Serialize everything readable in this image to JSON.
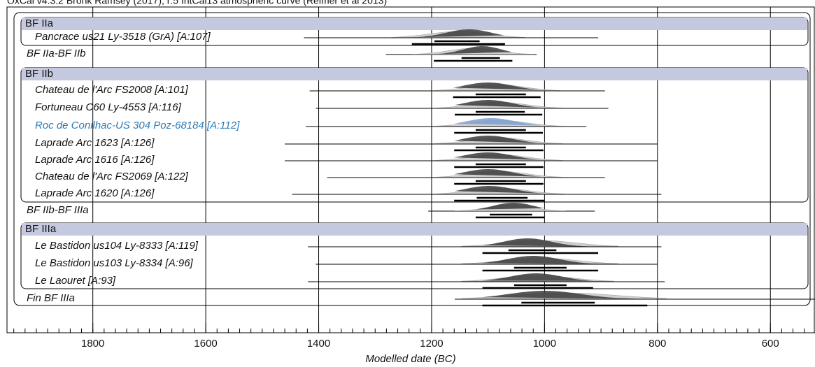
{
  "chart_data": {
    "type": "multiplot",
    "title": "OxCal v4.3.2 Bronk Ramsey (2017); r:5 IntCal13 atmospheric curve (Reimer et al 2013)",
    "xlabel": "Modelled date (BC)",
    "xlim": [
      1952,
      521
    ],
    "xticks": [
      1800,
      1600,
      1400,
      1200,
      1000,
      800,
      600
    ],
    "xminorticks": [
      1940,
      1920,
      1900,
      1880,
      1860,
      1840,
      1820,
      1800,
      1780,
      1760,
      1740,
      1720,
      1700,
      1680,
      1660,
      1640,
      1620,
      1600,
      1580,
      1560,
      1540,
      1520,
      1500,
      1480,
      1460,
      1440,
      1420,
      1400,
      1380,
      1360,
      1340,
      1320,
      1300,
      1280,
      1260,
      1240,
      1220,
      1200,
      1180,
      1160,
      1140,
      1120,
      1100,
      1080,
      1060,
      1040,
      1020,
      1000,
      980,
      960,
      940,
      920,
      900,
      880,
      860,
      840,
      820,
      800,
      780,
      760,
      740,
      720,
      700,
      680,
      660,
      640,
      620,
      600,
      580,
      560,
      540
    ],
    "grid": true,
    "color": "#3a3a3a",
    "highlight_color": "#2b7bb9",
    "highlight_fill": "#7d9fd3",
    "rows": [
      {
        "label": "BF IIa",
        "header": true
      },
      {
        "label": "Pancrace us21 Ly-3518 (GrA) [A:107]",
        "line": [
          1426,
          905
        ],
        "range95": [
          1235,
          1070
        ],
        "range68": [
          1195,
          1115
        ],
        "peak": 1134
      },
      {
        "label": "BF IIa-BF IIb",
        "line": [
          1281,
          1014
        ],
        "range95": [
          1196,
          1057
        ],
        "range68": [
          1147,
          1079
        ],
        "peak": 1110
      },
      {
        "label": "BF IIb",
        "header": true
      },
      {
        "label": "Chateau de l'Arc FS2008 [A:101]",
        "line": [
          1416,
          893
        ],
        "range95": [
          1162,
          1007
        ],
        "range68": [
          1122,
          1033
        ],
        "peak": 1100
      },
      {
        "label": "Fortuneau C60 Ly-4553 [A:116]",
        "line": [
          1405,
          887
        ],
        "range95": [
          1159,
          1004
        ],
        "range68": [
          1122,
          1035
        ],
        "peak": 1100
      },
      {
        "label": "Roc de Conilhac-US 304 Poz-68184 [A:112]",
        "line": [
          1423,
          926
        ],
        "range95": [
          1160,
          1003
        ],
        "range68": [
          1122,
          1033
        ],
        "peak": 1095,
        "highlight": true
      },
      {
        "label": "Laprade Arc 1623 [A:126]",
        "line": [
          1460,
          800
        ],
        "range95": [
          1160,
          1002
        ],
        "range68": [
          1122,
          1033
        ],
        "peak": 1100
      },
      {
        "label": "Laprade Arc 1616 [A:126]",
        "line": [
          1460,
          800
        ],
        "range95": [
          1160,
          1002
        ],
        "range68": [
          1122,
          1033
        ],
        "peak": 1100
      },
      {
        "label": "Chateau de l'Arc FS2069 [A:122]",
        "line": [
          1385,
          893
        ],
        "range95": [
          1160,
          1002
        ],
        "range68": [
          1122,
          1033
        ],
        "peak": 1100
      },
      {
        "label": "Laprade Arc 1620 [A:126]",
        "line": [
          1447,
          793
        ],
        "range95": [
          1160,
          1000
        ],
        "range68": [
          1120,
          1030
        ],
        "peak": 1098
      },
      {
        "label": "BF IIb-BF IIIa",
        "line": [
          1206,
          911
        ],
        "range95": [
          1122,
          1000
        ],
        "range68": [
          1097,
          1022
        ],
        "peak": 1055
      },
      {
        "label": "BF IIIa",
        "header": true
      },
      {
        "label": "Le Bastidon us104 Ly-8333 [A:119]",
        "line": [
          1419,
          793
        ],
        "range95": [
          1110,
          905
        ],
        "range68": [
          1064,
          979
        ],
        "peak": 1030
      },
      {
        "label": "Le Bastidon us103 Ly-8334 [A:96]",
        "line": [
          1405,
          800
        ],
        "range95": [
          1110,
          905
        ],
        "range68": [
          1054,
          961
        ],
        "peak": 1020
      },
      {
        "label": "Le Laouret [A:93]",
        "line": [
          1419,
          787
        ],
        "range95": [
          1110,
          914
        ],
        "range68": [
          1054,
          961
        ],
        "peak": 1015
      },
      {
        "label": "Fin BF IIIa",
        "line": [
          1159,
          521
        ],
        "range95": [
          1110,
          818
        ],
        "range68": [
          1041,
          911
        ],
        "peak": 1000
      }
    ]
  }
}
